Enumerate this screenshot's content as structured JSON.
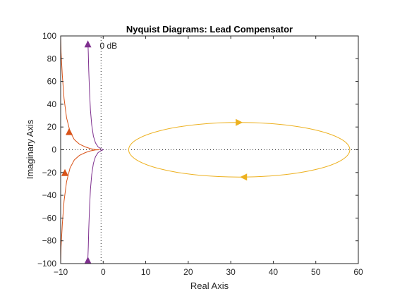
{
  "chart_data": {
    "type": "line",
    "title": "Nyquist Diagrams: Lead Compensator",
    "xlabel": "Real Axis",
    "ylabel": "Imaginary Axis",
    "xlim": [
      -10,
      60
    ],
    "ylim": [
      -100,
      100
    ],
    "xticks": [
      -10,
      0,
      10,
      20,
      30,
      40,
      50,
      60
    ],
    "yticks": [
      -100,
      -80,
      -60,
      -40,
      -20,
      0,
      20,
      40,
      60,
      80,
      100
    ],
    "grid": false,
    "annotation": {
      "text": "0 dB",
      "x": -0.8,
      "y": 89
    },
    "reference_lines": [
      {
        "orientation": "horizontal",
        "value": 0,
        "style": "dotted"
      },
      {
        "orientation": "vertical",
        "value": -0.5,
        "style": "dotted"
      }
    ],
    "series": [
      {
        "color": "#7E2F8E",
        "points_upper": [
          [
            -3.6,
            95
          ],
          [
            -3.5,
            85
          ],
          [
            -3.4,
            70
          ],
          [
            -3.2,
            50
          ],
          [
            -3.0,
            35
          ],
          [
            -2.7,
            22
          ],
          [
            -2.3,
            12
          ],
          [
            -1.8,
            6
          ],
          [
            -1.2,
            2.5
          ],
          [
            -0.5,
            0.8
          ],
          [
            0,
            0
          ]
        ],
        "points_lower": [
          [
            -3.6,
            -95
          ],
          [
            -3.5,
            -85
          ],
          [
            -3.4,
            -70
          ],
          [
            -3.2,
            -50
          ],
          [
            -3.0,
            -35
          ],
          [
            -2.7,
            -22
          ],
          [
            -2.3,
            -12
          ],
          [
            -1.8,
            -6
          ],
          [
            -1.2,
            -2.5
          ],
          [
            -0.5,
            -0.8
          ],
          [
            0,
            0
          ]
        ],
        "arrows": [
          [
            -3.6,
            93
          ],
          [
            -3.6,
            -97
          ]
        ]
      },
      {
        "color": "#D95319",
        "points_upper": [
          [
            -10,
            100
          ],
          [
            -9.9,
            85
          ],
          [
            -9.6,
            65
          ],
          [
            -9.2,
            45
          ],
          [
            -8.6,
            28
          ],
          [
            -7.8,
            16
          ],
          [
            -6.8,
            9
          ],
          [
            -5.6,
            5
          ],
          [
            -4.2,
            2.5
          ],
          [
            -3,
            1
          ],
          [
            -1.8,
            0.2
          ],
          [
            -0.8,
            0
          ]
        ],
        "points_lower": [
          [
            -10,
            -100
          ],
          [
            -9.9,
            -85
          ],
          [
            -9.6,
            -65
          ],
          [
            -9.2,
            -45
          ],
          [
            -8.6,
            -28
          ],
          [
            -7.8,
            -16
          ],
          [
            -6.8,
            -9
          ],
          [
            -5.6,
            -5
          ],
          [
            -4.2,
            -2.5
          ],
          [
            -3,
            -1
          ],
          [
            -1.8,
            -0.2
          ],
          [
            -0.8,
            0
          ]
        ],
        "arrows": [
          [
            -8.0,
            16
          ],
          [
            -9.0,
            -20
          ]
        ]
      },
      {
        "color": "#EDB120",
        "ellipse": {
          "cx": 32,
          "cy": 0,
          "rx": 26,
          "ry": 24
        },
        "arrows": [
          [
            32,
            24
          ],
          [
            33,
            -24
          ]
        ]
      }
    ]
  }
}
